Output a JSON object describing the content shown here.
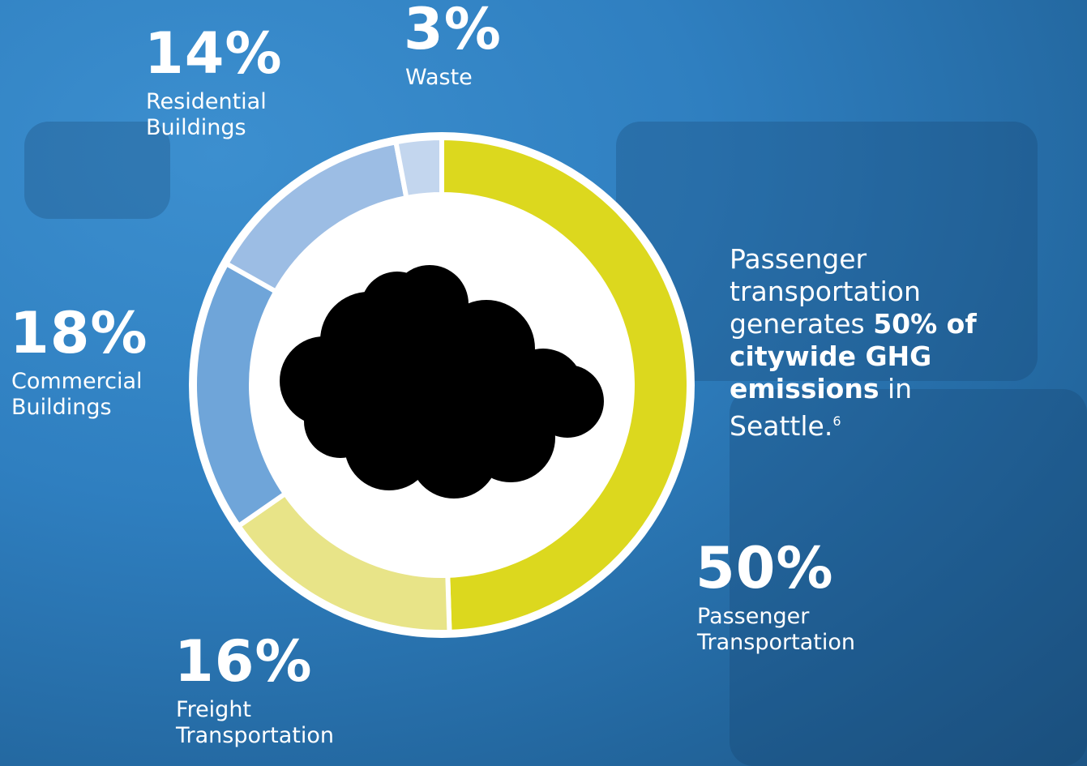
{
  "chart_data": {
    "type": "pie",
    "donut": true,
    "categories": [
      "Passenger Transportation",
      "Freight Transportation",
      "Commercial Buildings",
      "Residential Buildings",
      "Waste"
    ],
    "values": [
      50,
      16,
      18,
      14,
      3
    ],
    "value_labels": [
      "50%",
      "16%",
      "18%",
      "14%",
      "3%"
    ],
    "colors": [
      "#dcd81e",
      "#e8e488",
      "#6fa5d9",
      "#9cbde4",
      "#c3d6ee"
    ],
    "annotation": [
      "Passenger transportation generates ",
      "50% of citywide GHG emissions",
      " in Seattle.",
      "6"
    ]
  }
}
